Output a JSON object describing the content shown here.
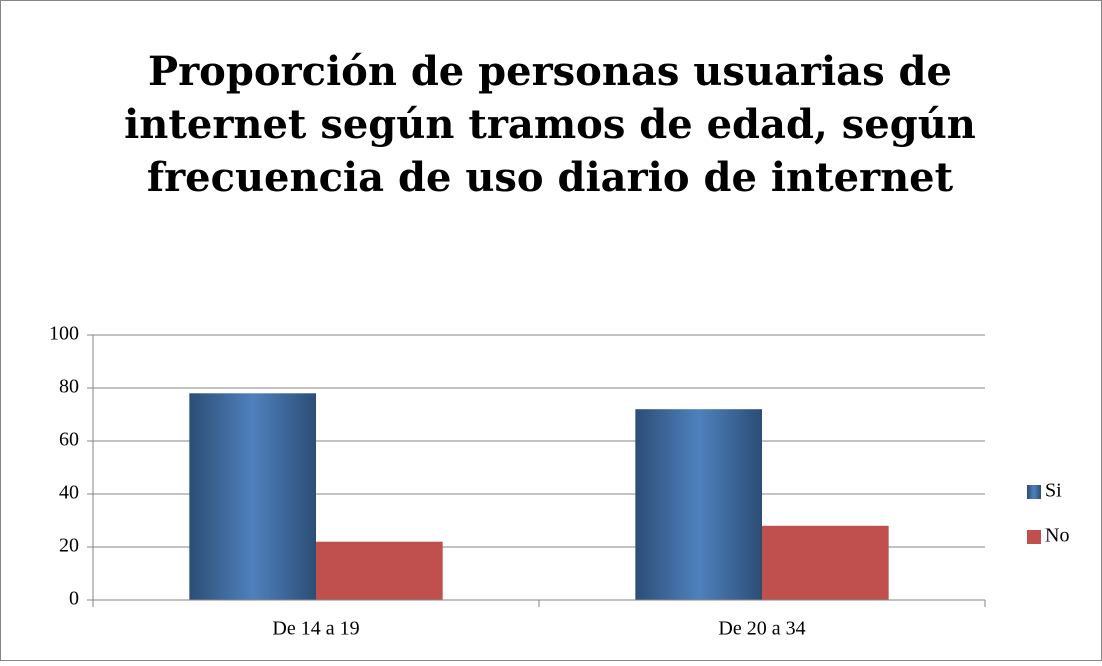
{
  "chart_data": {
    "type": "bar",
    "title": [
      "Proporción de personas usuarias de",
      "internet según tramos de edad, según",
      "frecuencia de uso diario de internet"
    ],
    "categories": [
      "De 14 a 19",
      "De 20 a 34"
    ],
    "series": [
      {
        "name": "Si",
        "color": "#4f81bd",
        "values": [
          78,
          72
        ]
      },
      {
        "name": "No",
        "color": "#c0504d",
        "values": [
          22,
          28
        ]
      }
    ],
    "ylim": [
      0,
      100
    ],
    "yticks": [
      0,
      20,
      40,
      60,
      80,
      100
    ],
    "grid": true,
    "legend": "right"
  }
}
